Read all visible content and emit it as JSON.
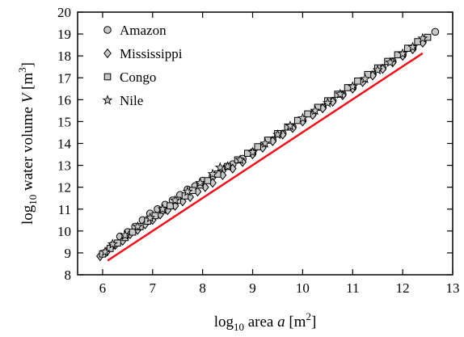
{
  "chart_data": {
    "type": "scatter",
    "xlabel": {
      "pre": "log",
      "sub": "10",
      "mid": " area ",
      "var": "a",
      "unit_pre": " [m",
      "sup": "2",
      "unit_post": "]"
    },
    "ylabel": {
      "pre": "log",
      "sub": "10",
      "mid": " water volume ",
      "var": "V",
      "unit_pre": " [m",
      "sup": "3",
      "unit_post": "]"
    },
    "xlim": [
      5.5,
      13
    ],
    "ylim": [
      8,
      20
    ],
    "xticks": [
      6,
      7,
      8,
      9,
      10,
      11,
      12,
      13
    ],
    "yticks": [
      8,
      9,
      10,
      11,
      12,
      13,
      14,
      15,
      16,
      17,
      18,
      19,
      20
    ],
    "grid": false,
    "legend_position": "top-left",
    "series": [
      {
        "name": "Amazon",
        "marker": "circle",
        "x": [
          6.05,
          6.2,
          6.35,
          6.5,
          6.65,
          6.8,
          6.95,
          7.1,
          7.25,
          7.4,
          7.55,
          7.7,
          7.85,
          8.0,
          8.2,
          8.4,
          8.6,
          8.8,
          9.0,
          9.2,
          9.4,
          9.6,
          9.8,
          10.0,
          10.2,
          10.4,
          10.6,
          10.8,
          11.0,
          11.2,
          11.4,
          11.6,
          11.8,
          12.0,
          12.2,
          12.4,
          12.65
        ],
        "y": [
          9.0,
          9.35,
          9.75,
          9.95,
          10.2,
          10.5,
          10.8,
          11.0,
          11.2,
          11.4,
          11.65,
          11.9,
          12.05,
          12.3,
          12.5,
          12.8,
          13.05,
          13.3,
          13.6,
          13.9,
          14.15,
          14.45,
          14.75,
          15.05,
          15.35,
          15.65,
          15.95,
          16.25,
          16.55,
          16.85,
          17.15,
          17.45,
          17.75,
          18.05,
          18.35,
          18.65,
          19.1
        ]
      },
      {
        "name": "Mississippi",
        "marker": "diamond",
        "x": [
          5.95,
          6.1,
          6.25,
          6.4,
          6.55,
          6.7,
          6.85,
          7.0,
          7.15,
          7.3,
          7.45,
          7.6,
          7.75,
          7.9,
          8.05,
          8.2,
          8.4,
          8.6,
          8.8,
          9.0,
          9.2,
          9.4,
          9.6,
          9.8,
          10.0,
          10.2,
          10.4,
          10.6,
          10.8,
          11.0,
          11.2,
          11.4,
          11.6,
          11.8,
          12.0,
          12.2,
          12.4
        ],
        "y": [
          8.85,
          9.1,
          9.35,
          9.55,
          9.85,
          10.05,
          10.3,
          10.5,
          10.75,
          10.95,
          11.15,
          11.35,
          11.55,
          11.8,
          12.0,
          12.2,
          12.55,
          12.85,
          13.15,
          13.5,
          13.8,
          14.1,
          14.4,
          14.7,
          15.0,
          15.3,
          15.6,
          15.9,
          16.2,
          16.5,
          16.8,
          17.1,
          17.4,
          17.7,
          18.0,
          18.3,
          18.6
        ]
      },
      {
        "name": "Congo",
        "marker": "square",
        "x": [
          6.0,
          6.15,
          6.3,
          6.45,
          6.6,
          6.75,
          6.9,
          7.05,
          7.2,
          7.35,
          7.5,
          7.65,
          7.8,
          7.95,
          8.1,
          8.3,
          8.5,
          8.7,
          8.9,
          9.1,
          9.3,
          9.5,
          9.7,
          9.9,
          10.1,
          10.3,
          10.5,
          10.7,
          10.9,
          11.1,
          11.3,
          11.5,
          11.7,
          11.9,
          12.1,
          12.3,
          12.5
        ],
        "y": [
          8.95,
          9.2,
          9.45,
          9.7,
          9.95,
          10.2,
          10.45,
          10.7,
          10.95,
          11.15,
          11.4,
          11.6,
          11.85,
          12.1,
          12.3,
          12.6,
          12.95,
          13.25,
          13.55,
          13.85,
          14.15,
          14.45,
          14.75,
          15.05,
          15.35,
          15.65,
          15.95,
          16.25,
          16.55,
          16.85,
          17.15,
          17.45,
          17.75,
          18.05,
          18.35,
          18.65,
          18.85
        ]
      },
      {
        "name": "Nile",
        "marker": "star",
        "x": [
          6.05,
          6.2,
          6.45,
          6.7,
          6.95,
          7.2,
          7.45,
          7.7,
          7.95,
          8.2,
          8.35,
          8.5,
          8.75,
          9.0,
          9.25,
          9.5,
          9.75,
          10.0,
          10.25,
          10.5,
          10.75,
          11.0,
          11.25,
          11.5,
          11.75,
          12.0,
          12.2,
          12.4
        ],
        "y": [
          9.05,
          9.4,
          9.8,
          10.2,
          10.6,
          11.0,
          11.4,
          11.8,
          12.2,
          12.6,
          12.9,
          12.95,
          13.25,
          13.6,
          14.0,
          14.4,
          14.8,
          15.15,
          15.5,
          15.85,
          16.25,
          16.6,
          16.95,
          17.35,
          17.7,
          18.1,
          18.4,
          18.8
        ]
      },
      {
        "name": "",
        "type": "line",
        "color": "#e8141e",
        "x": [
          6.1,
          12.4
        ],
        "y": [
          8.65,
          18.12
        ]
      }
    ]
  }
}
